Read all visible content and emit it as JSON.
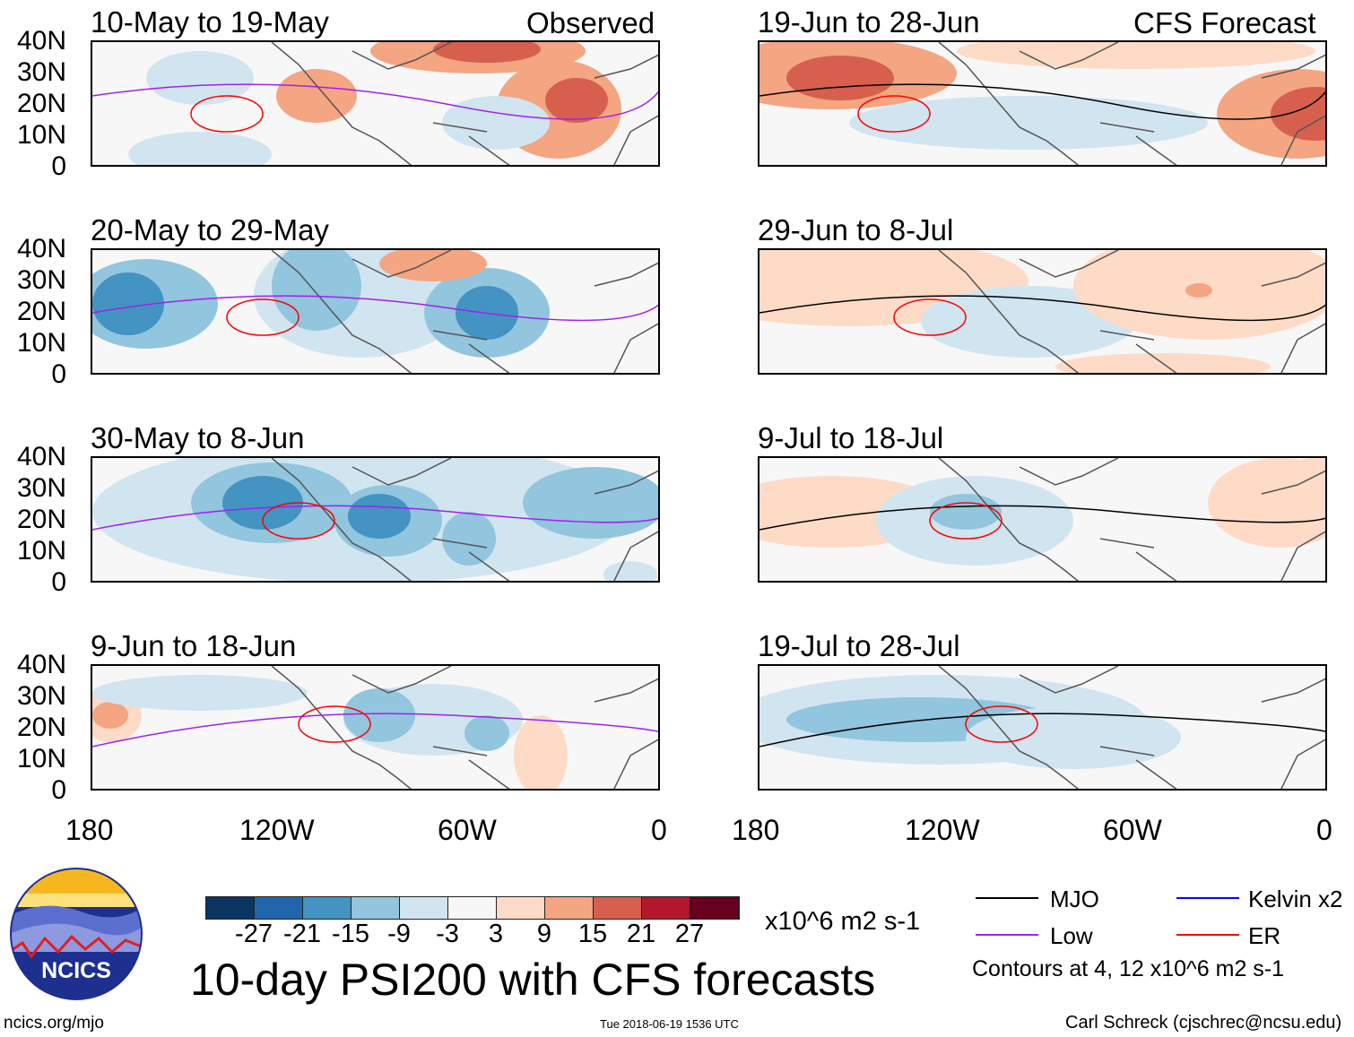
{
  "columns": {
    "left_label": "Observed",
    "right_label": "CFS Forecast"
  },
  "panels": [
    {
      "title": "10-May to 19-May",
      "column": "observed"
    },
    {
      "title": "20-May to 29-May",
      "column": "observed"
    },
    {
      "title": "30-May to 8-Jun",
      "column": "observed"
    },
    {
      "title": "9-Jun to 18-Jun",
      "column": "observed"
    },
    {
      "title": "19-Jun to 28-Jun",
      "column": "forecast"
    },
    {
      "title": "29-Jun to 8-Jul",
      "column": "forecast"
    },
    {
      "title": "9-Jul to 18-Jul",
      "column": "forecast"
    },
    {
      "title": "19-Jul to 28-Jul",
      "column": "forecast"
    }
  ],
  "lat_ticks": [
    "40N",
    "30N",
    "20N",
    "10N",
    "0"
  ],
  "lon_ticks": [
    "180",
    "120W",
    "60W",
    "0"
  ],
  "colorbar": {
    "colors": [
      "#0b3563",
      "#2166ac",
      "#4393c3",
      "#92c5de",
      "#d1e5f0",
      "#f7f7f7",
      "#fddbc7",
      "#f4a582",
      "#d6604d",
      "#b2182b",
      "#67001f"
    ],
    "labels": [
      "-27",
      "-21",
      "-15",
      "-9",
      "-3",
      "3",
      "9",
      "15",
      "21",
      "27"
    ],
    "units": "x10^6 m2 s-1"
  },
  "legend": {
    "items": [
      {
        "label": "MJO",
        "color": "#000000"
      },
      {
        "label": "Kelvin x2",
        "color": "#0000ff"
      },
      {
        "label": "Low",
        "color": "#a020f0"
      },
      {
        "label": "ER",
        "color": "#ff0000"
      }
    ],
    "note": "Contours at 4, 12 x10^6 m2 s-1"
  },
  "title": "10-day PSI200 with CFS forecasts",
  "logo_text": "NCICS",
  "footer": {
    "url": "ncics.org/mjo",
    "timestamp": "Tue 2018-06-19 1536 UTC",
    "author": "Carl Schreck (cjschrec@ncsu.edu)"
  }
}
